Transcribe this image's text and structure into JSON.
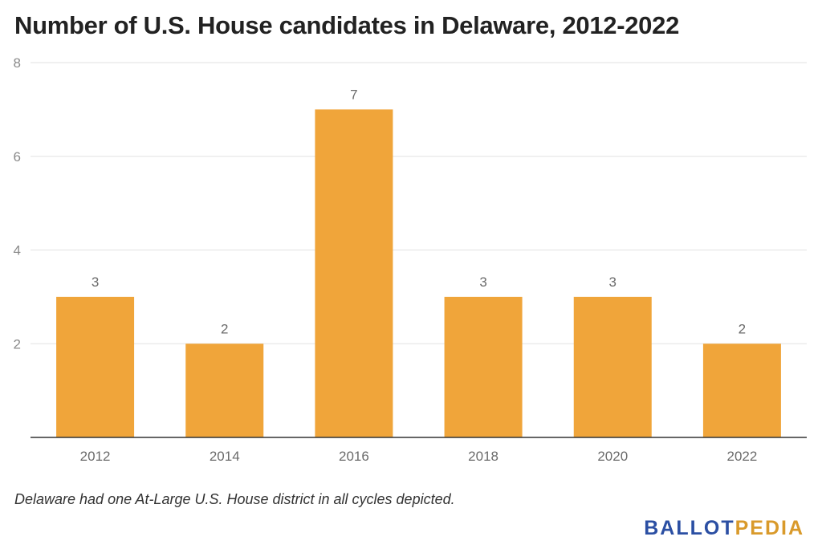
{
  "chart_data": {
    "type": "bar",
    "title": "Number of U.S. House candidates in Delaware, 2012-2022",
    "categories": [
      "2012",
      "2014",
      "2016",
      "2018",
      "2020",
      "2022"
    ],
    "values": [
      3,
      2,
      7,
      3,
      3,
      2
    ],
    "ylim": [
      0,
      8
    ],
    "yticks": [
      "2",
      "4",
      "6",
      "8"
    ],
    "xlabel": "",
    "ylabel": "",
    "grid": true,
    "bar_color": "#f0a53a",
    "data_labels": true
  },
  "footer": {
    "note": "Delaware had one At-Large U.S. House district in all cycles depicted.",
    "logo_part1": "BALLOT",
    "logo_part2": "PEDIA"
  },
  "colors": {
    "logo_blue": "#2b4fa3",
    "logo_gold": "#d99a2b"
  }
}
